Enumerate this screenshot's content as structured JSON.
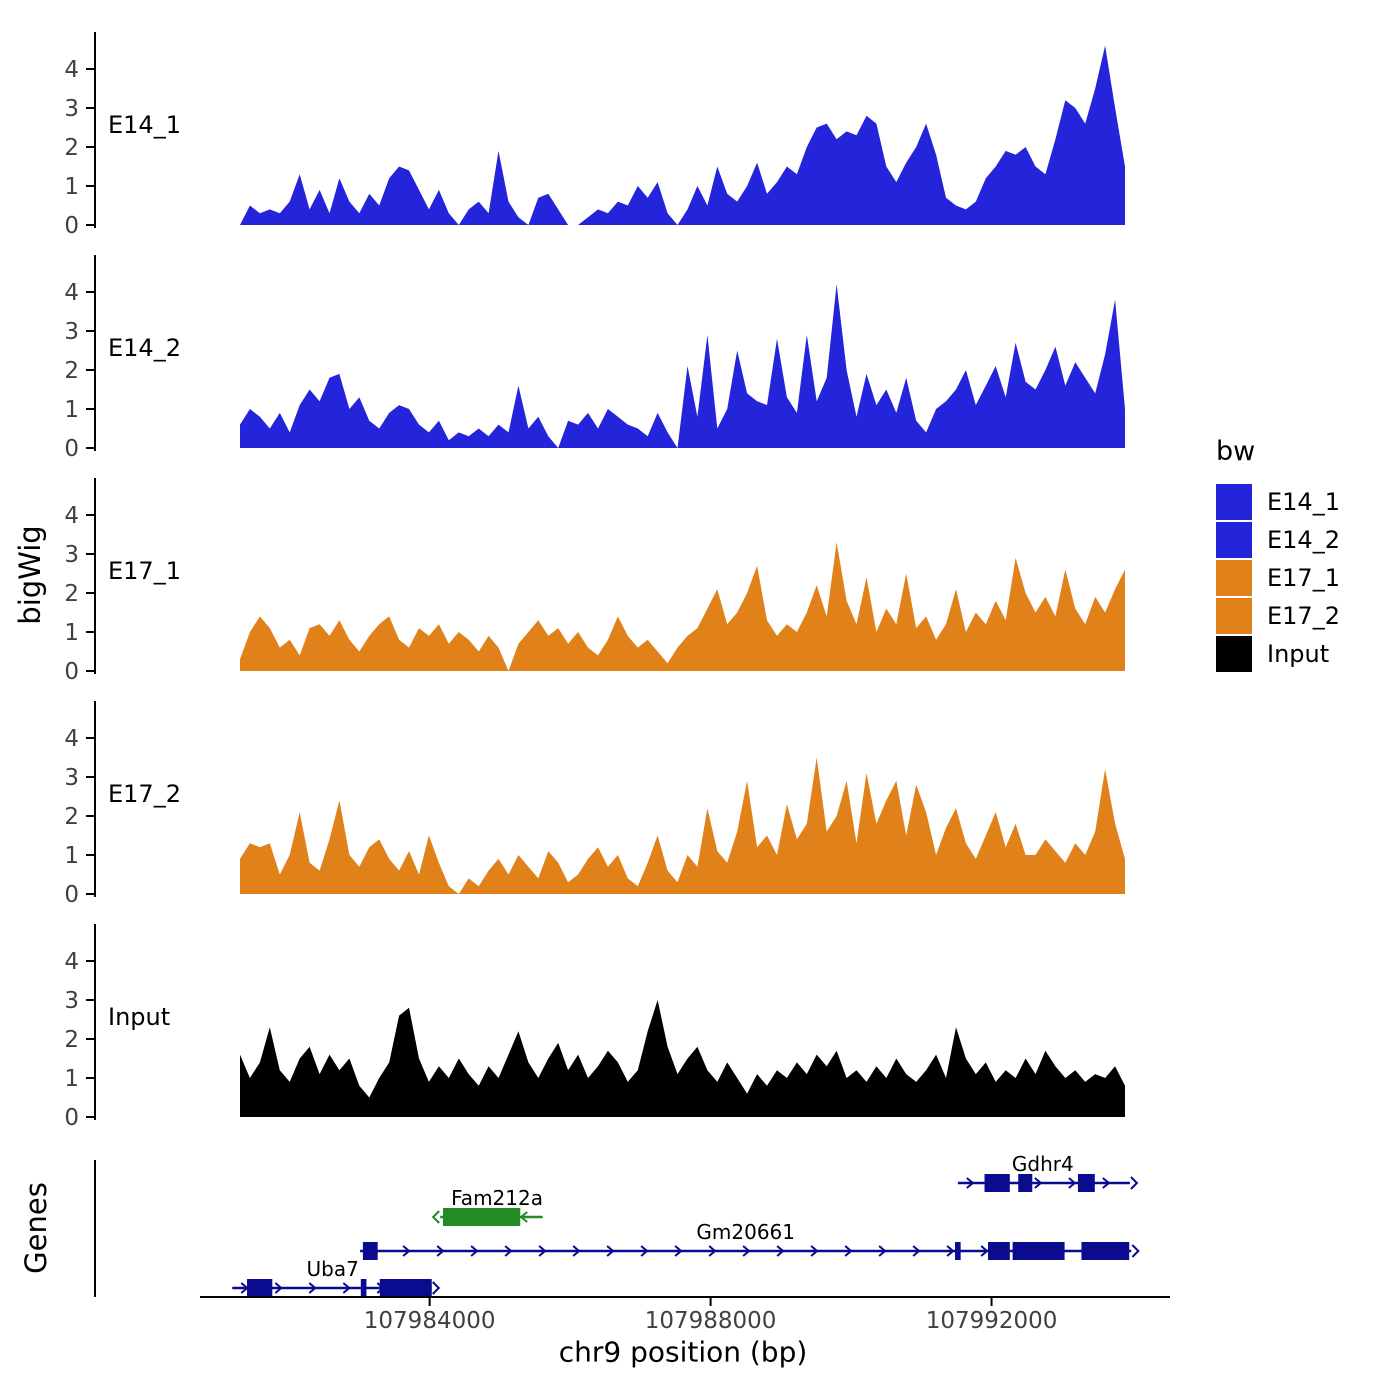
{
  "ylabel": "bigWig",
  "genes_label": "Genes",
  "xlabel": "chr9 position (bp)",
  "legend": {
    "title": "bw",
    "items": [
      {
        "label": "E14_1",
        "color": "#2424DB"
      },
      {
        "label": "E14_2",
        "color": "#2424DB"
      },
      {
        "label": "E17_1",
        "color": "#E0811A"
      },
      {
        "label": "E17_2",
        "color": "#E0811A"
      },
      {
        "label": "Input",
        "color": "#000000"
      }
    ]
  },
  "chart_data": {
    "type": "area",
    "title": "",
    "xlabel": "chr9 position (bp)",
    "ylabel": "bigWig",
    "x_domain": [
      107981300,
      107993900
    ],
    "x_ticks": [
      107984000,
      107988000,
      107992000
    ],
    "y_ticks": [
      0,
      1,
      2,
      3,
      4
    ],
    "ylim": [
      0,
      4.8
    ],
    "grid": false,
    "legend_position": "right",
    "series": [
      {
        "name": "E14_1",
        "color": "#2424DB",
        "values": [
          0,
          0.5,
          0.3,
          0.4,
          0.3,
          0.6,
          1.3,
          0.4,
          0.9,
          0.3,
          1.2,
          0.6,
          0.3,
          0.8,
          0.5,
          1.2,
          1.5,
          1.4,
          0.9,
          0.4,
          0.9,
          0.3,
          0,
          0.4,
          0.6,
          0.3,
          1.9,
          0.6,
          0.2,
          0,
          0.7,
          0.8,
          0.4,
          0,
          0,
          0.2,
          0.4,
          0.3,
          0.6,
          0.5,
          1.0,
          0.7,
          1.1,
          0.3,
          0,
          0.4,
          1.0,
          0.5,
          1.5,
          0.8,
          0.6,
          1.0,
          1.6,
          0.8,
          1.1,
          1.5,
          1.3,
          2.0,
          2.5,
          2.6,
          2.2,
          2.4,
          2.3,
          2.8,
          2.6,
          1.5,
          1.1,
          1.6,
          2.0,
          2.6,
          1.8,
          0.7,
          0.5,
          0.4,
          0.6,
          1.2,
          1.5,
          1.9,
          1.8,
          2.0,
          1.5,
          1.3,
          2.2,
          3.2,
          3.0,
          2.6,
          3.5,
          4.6,
          3.0,
          1.5
        ]
      },
      {
        "name": "E14_2",
        "color": "#2424DB",
        "values": [
          0.6,
          1.0,
          0.8,
          0.5,
          0.9,
          0.4,
          1.1,
          1.5,
          1.2,
          1.8,
          1.9,
          1.0,
          1.3,
          0.7,
          0.5,
          0.9,
          1.1,
          1.0,
          0.6,
          0.4,
          0.7,
          0.2,
          0.4,
          0.3,
          0.5,
          0.3,
          0.6,
          0.4,
          1.6,
          0.5,
          0.8,
          0.3,
          0,
          0.7,
          0.6,
          0.9,
          0.5,
          1.0,
          0.8,
          0.6,
          0.5,
          0.3,
          0.9,
          0.4,
          0,
          2.1,
          0.8,
          2.9,
          0.5,
          1.0,
          2.5,
          1.4,
          1.2,
          1.1,
          2.8,
          1.3,
          0.9,
          2.9,
          1.2,
          1.8,
          4.2,
          2.0,
          0.8,
          1.9,
          1.1,
          1.5,
          0.9,
          1.8,
          0.7,
          0.4,
          1.0,
          1.2,
          1.5,
          2.0,
          1.1,
          1.6,
          2.1,
          1.3,
          2.7,
          1.7,
          1.5,
          2.0,
          2.6,
          1.6,
          2.2,
          1.8,
          1.4,
          2.4,
          3.8,
          1.0
        ]
      },
      {
        "name": "E17_1",
        "color": "#E0811A",
        "values": [
          0.3,
          1.0,
          1.4,
          1.1,
          0.6,
          0.8,
          0.4,
          1.1,
          1.2,
          0.9,
          1.3,
          0.8,
          0.5,
          0.9,
          1.2,
          1.4,
          0.8,
          0.6,
          1.1,
          0.9,
          1.2,
          0.7,
          1.0,
          0.8,
          0.5,
          0.9,
          0.6,
          0,
          0.7,
          1.0,
          1.3,
          0.9,
          1.1,
          0.7,
          1.0,
          0.6,
          0.4,
          0.8,
          1.4,
          0.9,
          0.6,
          0.8,
          0.5,
          0.2,
          0.6,
          0.9,
          1.1,
          1.6,
          2.1,
          1.2,
          1.5,
          2.0,
          2.7,
          1.3,
          0.9,
          1.2,
          1.0,
          1.5,
          2.2,
          1.4,
          3.3,
          1.8,
          1.2,
          2.4,
          1.0,
          1.6,
          1.2,
          2.5,
          1.1,
          1.4,
          0.8,
          1.2,
          2.1,
          1.0,
          1.5,
          1.2,
          1.8,
          1.3,
          2.9,
          2.0,
          1.5,
          1.9,
          1.4,
          2.6,
          1.6,
          1.2,
          1.9,
          1.5,
          2.1,
          2.6
        ]
      },
      {
        "name": "E17_2",
        "color": "#E0811A",
        "values": [
          0.9,
          1.3,
          1.2,
          1.3,
          0.5,
          1.0,
          2.1,
          0.8,
          0.6,
          1.4,
          2.4,
          1.0,
          0.7,
          1.2,
          1.4,
          0.9,
          0.6,
          1.1,
          0.5,
          1.5,
          0.8,
          0.2,
          0,
          0.4,
          0.2,
          0.6,
          0.9,
          0.5,
          1.0,
          0.7,
          0.4,
          1.1,
          0.8,
          0.3,
          0.5,
          0.9,
          1.2,
          0.7,
          1.0,
          0.4,
          0.2,
          0.8,
          1.5,
          0.6,
          0.3,
          1.0,
          0.7,
          2.2,
          1.1,
          0.8,
          1.6,
          2.9,
          1.2,
          1.5,
          1.0,
          2.3,
          1.4,
          1.8,
          3.5,
          1.6,
          2.0,
          2.9,
          1.3,
          3.1,
          1.8,
          2.4,
          2.9,
          1.5,
          2.8,
          2.1,
          1.0,
          1.7,
          2.2,
          1.3,
          0.9,
          1.5,
          2.1,
          1.2,
          1.8,
          1.0,
          1.0,
          1.4,
          1.1,
          0.8,
          1.3,
          1.0,
          1.6,
          3.2,
          1.8,
          0.9
        ]
      },
      {
        "name": "Input",
        "color": "#000000",
        "values": [
          1.6,
          1.0,
          1.4,
          2.3,
          1.2,
          0.9,
          1.5,
          1.8,
          1.1,
          1.6,
          1.2,
          1.5,
          0.8,
          0.5,
          1.0,
          1.4,
          2.6,
          2.8,
          1.5,
          0.9,
          1.3,
          1.0,
          1.5,
          1.1,
          0.8,
          1.3,
          1.0,
          1.6,
          2.2,
          1.4,
          1.0,
          1.5,
          1.9,
          1.2,
          1.6,
          1.0,
          1.3,
          1.7,
          1.4,
          0.9,
          1.2,
          2.2,
          3.0,
          1.8,
          1.1,
          1.5,
          1.8,
          1.2,
          0.9,
          1.4,
          1.0,
          0.6,
          1.1,
          0.8,
          1.2,
          1.0,
          1.4,
          1.1,
          1.6,
          1.3,
          1.7,
          1.0,
          1.2,
          0.9,
          1.3,
          1.0,
          1.5,
          1.1,
          0.9,
          1.2,
          1.6,
          1.0,
          2.3,
          1.5,
          1.1,
          1.4,
          0.9,
          1.2,
          1.0,
          1.5,
          1.1,
          1.7,
          1.3,
          1.0,
          1.2,
          0.9,
          1.1,
          1.0,
          1.3,
          0.8
        ]
      }
    ],
    "genes": [
      {
        "name": "Gdhr4",
        "color": "#0B0B8F",
        "strand": "+",
        "row": 0,
        "start": 107991520,
        "end": 107993970,
        "label_x": 107992730,
        "exons": [
          [
            107991900,
            107992260
          ],
          [
            107992380,
            107992580
          ],
          [
            107993230,
            107993470
          ]
        ]
      },
      {
        "name": "Fam212a",
        "color": "#228B22",
        "strand": "-",
        "row": 1,
        "start": 107984150,
        "end": 107985610,
        "label_x": 107984960,
        "exons": [
          [
            107984190,
            107985290
          ]
        ]
      },
      {
        "name": "Gm20661",
        "color": "#0B0B8F",
        "strand": "+",
        "row": 2,
        "start": 107983010,
        "end": 107993990,
        "label_x": 107988500,
        "exons": [
          [
            107983050,
            107983260
          ],
          [
            107991480,
            107991560
          ],
          [
            107991950,
            107992260
          ],
          [
            107992300,
            107993040
          ],
          [
            107993280,
            107993960
          ]
        ]
      },
      {
        "name": "Uba7",
        "color": "#0B0B8F",
        "strand": "+",
        "row": 3,
        "start": 107981190,
        "end": 107984030,
        "label_x": 107982620,
        "exons": [
          [
            107981400,
            107981760
          ],
          [
            107983020,
            107983100
          ],
          [
            107983290,
            107984030
          ]
        ]
      }
    ]
  }
}
